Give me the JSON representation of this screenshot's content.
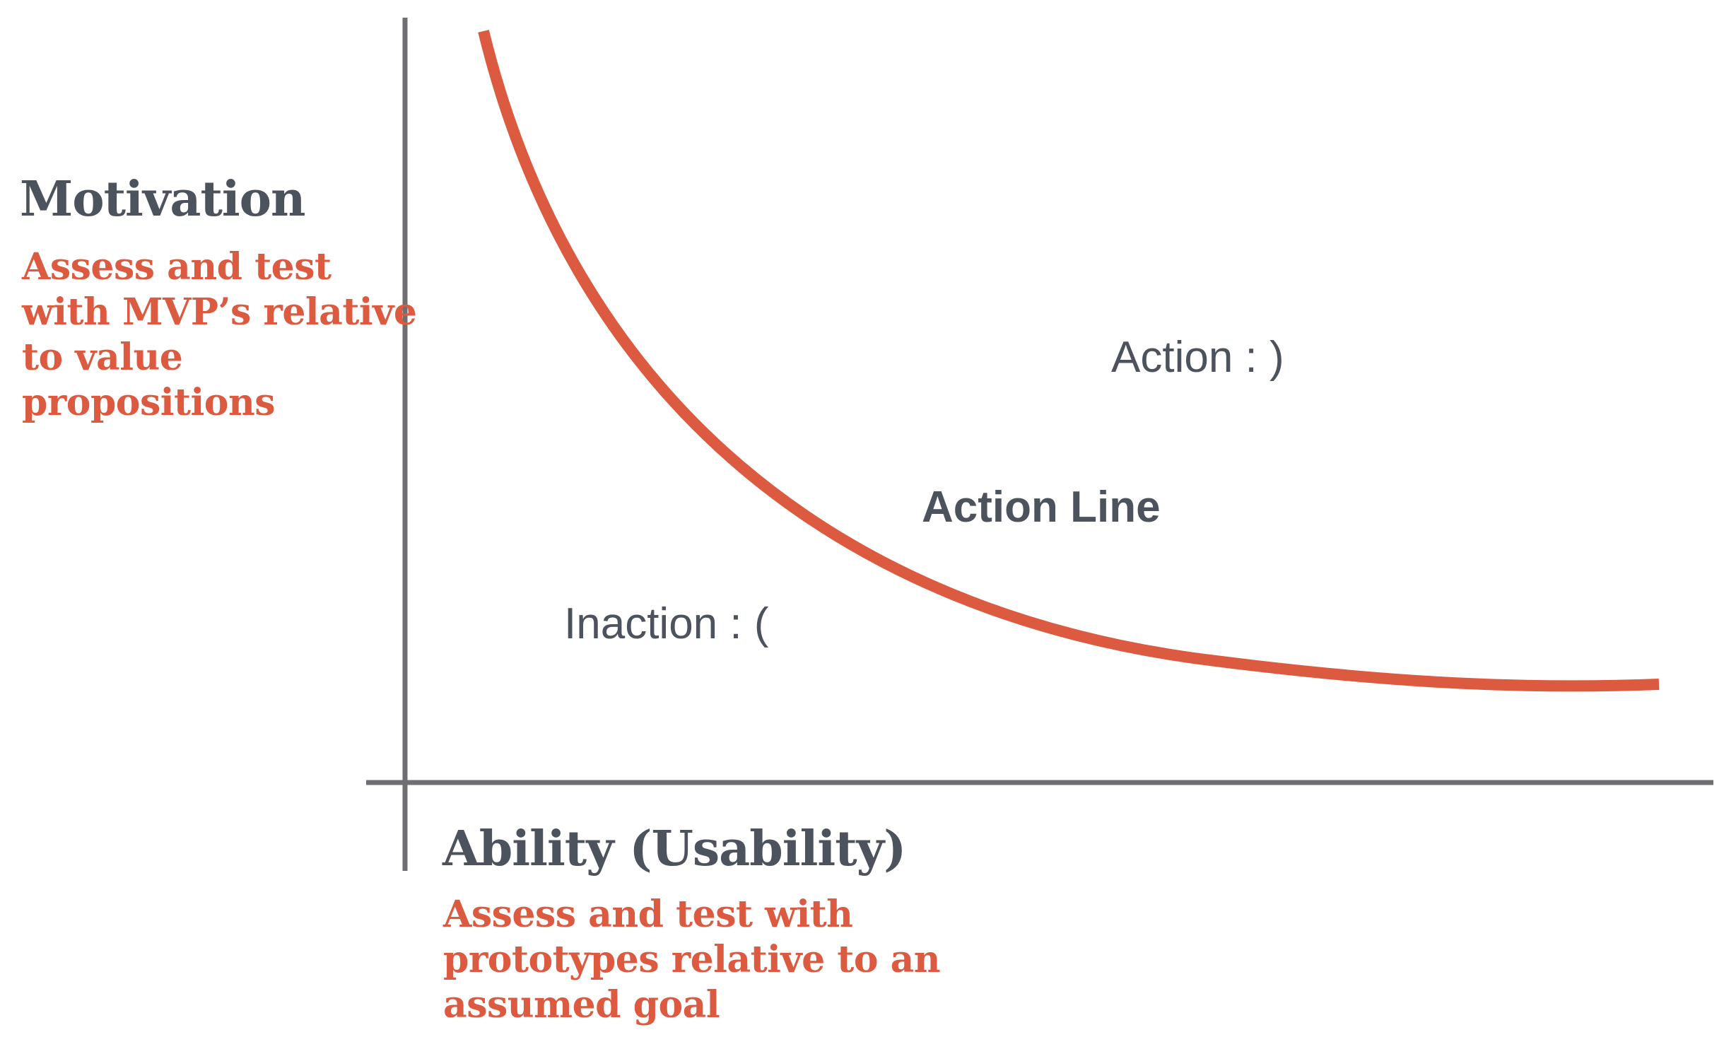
{
  "y_axis": {
    "title": "Motivation",
    "subtitle_lines": [
      "Assess and test",
      "with MVP’s relative",
      "to value",
      "propositions"
    ]
  },
  "x_axis": {
    "title": "Ability (Usability)",
    "subtitle_lines": [
      "Assess and test with",
      "prototypes relative to an",
      "assumed goal"
    ]
  },
  "regions": {
    "above_curve": "Action : )",
    "below_curve": "Inaction : ("
  },
  "curve": {
    "label": "Action Line"
  },
  "colors": {
    "axis": "#6f6f73",
    "curve": "#dc5a40",
    "title_text": "#4c535c",
    "subtitle_text": "#dc5a40"
  }
}
